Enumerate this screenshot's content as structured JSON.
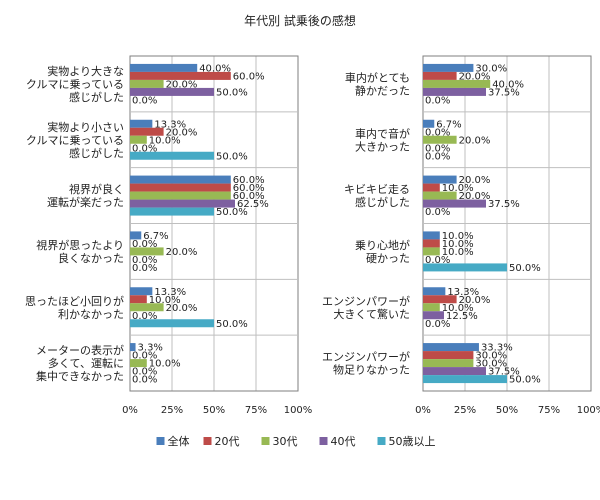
{
  "chart_data": {
    "type": "bar",
    "orientation": "horizontal",
    "title": "年代別 試乗後の感想",
    "x_ticks": [
      "0%",
      "25%",
      "50%",
      "75%",
      "100%"
    ],
    "xlim": [
      0,
      100
    ],
    "legend_position": "bottom",
    "series": [
      {
        "name": "全体",
        "color": "#4a7ebb"
      },
      {
        "name": "20代",
        "color": "#be4b48"
      },
      {
        "name": "30代",
        "color": "#98b954"
      },
      {
        "name": "40代",
        "color": "#7d60a0"
      },
      {
        "name": "50歳以上",
        "color": "#46aac5"
      }
    ],
    "panels": [
      {
        "categories": [
          {
            "label_lines": [
              "実物より大きな",
              "クルマに乗っている",
              "感じがした"
            ],
            "values": [
              40.0,
              60.0,
              20.0,
              50.0,
              0.0
            ],
            "labels": [
              "40.0%",
              "60.0%",
              "20.0%",
              "50.0%",
              "0.0%"
            ]
          },
          {
            "label_lines": [
              "実物より小さい",
              "クルマに乗っている",
              "感じがした"
            ],
            "values": [
              13.3,
              20.0,
              10.0,
              0.0,
              50.0
            ],
            "labels": [
              "13.3%",
              "20.0%",
              "10.0%",
              "0.0%",
              "50.0%"
            ]
          },
          {
            "label_lines": [
              "視界が良く",
              "運転が楽だった"
            ],
            "values": [
              60.0,
              60.0,
              60.0,
              62.5,
              50.0
            ],
            "labels": [
              "60.0%",
              "60.0%",
              "60.0%",
              "62.5%",
              "50.0%"
            ]
          },
          {
            "label_lines": [
              "視界が思ったより",
              "良くなかった"
            ],
            "values": [
              6.7,
              0.0,
              20.0,
              0.0,
              0.0
            ],
            "labels": [
              "6.7%",
              "0.0%",
              "20.0%",
              "0.0%",
              "0.0%"
            ]
          },
          {
            "label_lines": [
              "思ったほど小回りが",
              "利かなかった"
            ],
            "values": [
              13.3,
              10.0,
              20.0,
              0.0,
              50.0
            ],
            "labels": [
              "13.3%",
              "10.0%",
              "20.0%",
              "0.0%",
              "50.0%"
            ]
          },
          {
            "label_lines": [
              "メーターの表示が",
              "多くて、運転に",
              "集中できなかった"
            ],
            "values": [
              3.3,
              0.0,
              10.0,
              0.0,
              0.0
            ],
            "labels": [
              "3.3%",
              "0.0%",
              "10.0%",
              "0.0%",
              "0.0%"
            ]
          }
        ]
      },
      {
        "categories": [
          {
            "label_lines": [
              "車内がとても",
              "静かだった"
            ],
            "values": [
              30.0,
              20.0,
              40.0,
              37.5,
              0.0
            ],
            "labels": [
              "30.0%",
              "20.0%",
              "40.0%",
              "37.5%",
              "0.0%"
            ]
          },
          {
            "label_lines": [
              "車内で音が",
              "大きかった"
            ],
            "values": [
              6.7,
              0.0,
              20.0,
              0.0,
              0.0
            ],
            "labels": [
              "6.7%",
              "0.0%",
              "20.0%",
              "0.0%",
              "0.0%"
            ]
          },
          {
            "label_lines": [
              "キビキビ走る",
              "感じがした"
            ],
            "values": [
              20.0,
              10.0,
              20.0,
              37.5,
              0.0
            ],
            "labels": [
              "20.0%",
              "10.0%",
              "20.0%",
              "37.5%",
              "0.0%"
            ]
          },
          {
            "label_lines": [
              "乗り心地が",
              "硬かった"
            ],
            "values": [
              10.0,
              10.0,
              10.0,
              0.0,
              50.0
            ],
            "labels": [
              "10.0%",
              "10.0%",
              "10.0%",
              "0.0%",
              "50.0%"
            ]
          },
          {
            "label_lines": [
              "エンジンパワーが",
              "大きくて驚いた"
            ],
            "values": [
              13.3,
              20.0,
              10.0,
              12.5,
              0.0
            ],
            "labels": [
              "13.3%",
              "20.0%",
              "10.0%",
              "12.5%",
              "0.0%"
            ]
          },
          {
            "label_lines": [
              "エンジンパワーが",
              "物足りなかった"
            ],
            "values": [
              33.3,
              30.0,
              30.0,
              37.5,
              50.0
            ],
            "labels": [
              "33.3%",
              "30.0%",
              "30.0%",
              "37.5%",
              "50.0%"
            ]
          }
        ]
      }
    ]
  }
}
